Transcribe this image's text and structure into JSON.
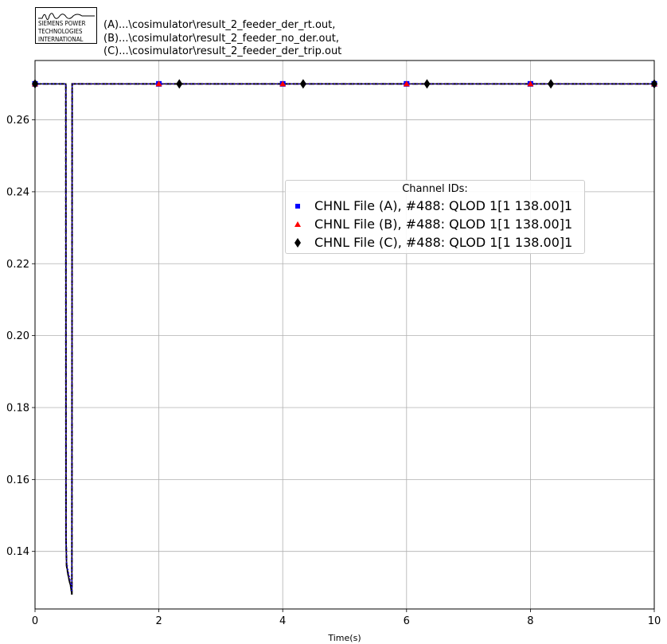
{
  "logo": {
    "lines": [
      "SIEMENS POWER",
      "TECHNOLOGIES",
      "INTERNATIONAL"
    ]
  },
  "header": {
    "files": [
      "(A)...\\cosimulator\\result_2_feeder_der_rt.out,",
      "(B)...\\cosimulator\\result_2_feeder_no_der.out,",
      "(C)...\\cosimulator\\result_2_feeder_der_trip.out"
    ]
  },
  "legend": {
    "title": "Channel IDs:",
    "items": [
      {
        "label": "CHNL File (A), #488: QLOD 1[1 138.00]1",
        "color": "#0000ff",
        "marker": "square"
      },
      {
        "label": "CHNL File (B), #488: QLOD 1[1 138.00]1",
        "color": "#ff0000",
        "marker": "triangle"
      },
      {
        "label": "CHNL File (C), #488: QLOD 1[1 138.00]1",
        "color": "#000000",
        "marker": "diamond"
      }
    ]
  },
  "chart_data": {
    "type": "line",
    "title": "",
    "xlabel": "Time(s)",
    "ylabel": "",
    "xlim": [
      0,
      10
    ],
    "ylim": [
      0.124,
      0.2765
    ],
    "xticks": [
      "0",
      "2",
      "4",
      "6",
      "8",
      "10"
    ],
    "yticks": [
      "0.14",
      "0.16",
      "0.18",
      "0.20",
      "0.22",
      "0.24",
      "0.26"
    ],
    "grid": true,
    "legend_position": "right",
    "series": [
      {
        "name": "CHNL File (A), #488: QLOD 1[1 138.00]1",
        "color": "#0000ff",
        "marker": "square",
        "style": "dotted",
        "x": [
          0,
          0.498,
          0.5,
          0.51,
          0.54,
          0.58,
          0.595,
          0.6,
          10
        ],
        "y": [
          0.27,
          0.27,
          0.145,
          0.137,
          0.134,
          0.131,
          0.129,
          0.27,
          0.27
        ],
        "marker_x": [
          0,
          2,
          4,
          6,
          8,
          10
        ]
      },
      {
        "name": "CHNL File (B), #488: QLOD 1[1 138.00]1",
        "color": "#ff0000",
        "marker": "triangle",
        "style": "dotted",
        "x": [
          0,
          0.498,
          0.5,
          0.51,
          0.54,
          0.58,
          0.595,
          0.6,
          10
        ],
        "y": [
          0.27,
          0.27,
          0.145,
          0.137,
          0.134,
          0.131,
          0.129,
          0.27,
          0.27
        ],
        "marker_x": [
          0,
          2,
          4,
          6,
          8,
          10
        ]
      },
      {
        "name": "CHNL File (C), #488: QLOD 1[1 138.00]1",
        "color": "#000000",
        "marker": "diamond",
        "style": "dashed",
        "x": [
          0,
          0.498,
          0.5,
          0.51,
          0.54,
          0.58,
          0.595,
          0.6,
          10
        ],
        "y": [
          0.27,
          0.27,
          0.144,
          0.136,
          0.133,
          0.13,
          0.128,
          0.27,
          0.27
        ],
        "marker_x": [
          0,
          2.33,
          4.33,
          6.33,
          8.33,
          10
        ]
      }
    ]
  }
}
